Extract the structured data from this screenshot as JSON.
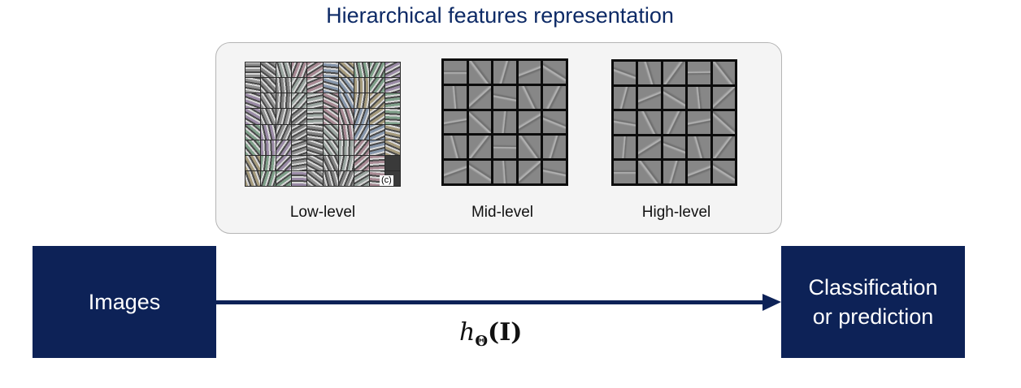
{
  "title": "Hierarchical features representation",
  "levels": [
    {
      "label": "Low-level"
    },
    {
      "label": "Mid-level"
    },
    {
      "label": "High-level"
    }
  ],
  "low_level_copyright": "(c)",
  "input_box": {
    "label": "Images"
  },
  "output_box": {
    "line1": "Classification",
    "line2": "or prediction"
  },
  "formula": {
    "symbol": "h",
    "subscript": "Θ",
    "argument": "(I)"
  },
  "colors": {
    "box": "#0d2257",
    "title": "#0d2a66",
    "panel_bg": "#f4f4f4"
  }
}
